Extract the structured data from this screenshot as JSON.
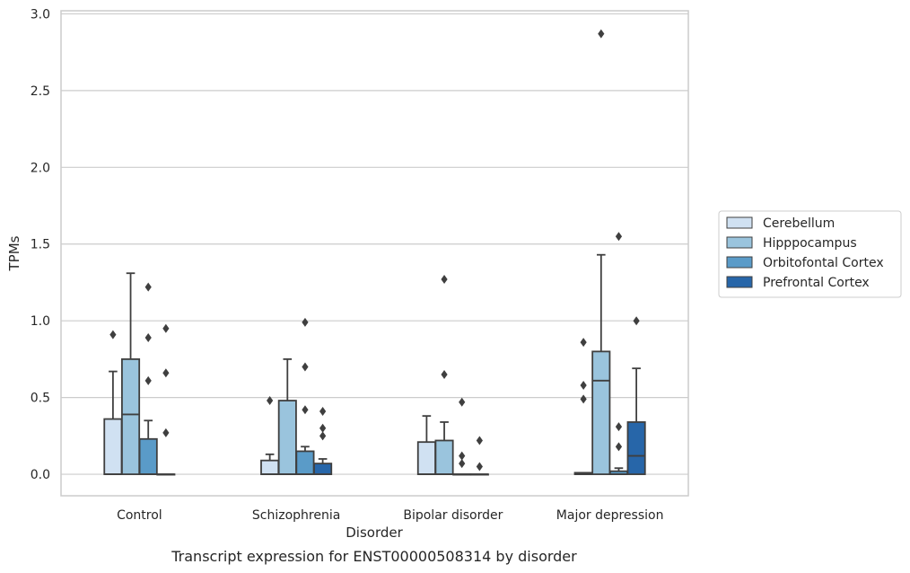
{
  "chart_data": {
    "type": "boxplot",
    "title": "",
    "caption": "Transcript expression for ENST00000508314 by disorder",
    "xlabel": "Disorder",
    "ylabel": "TPMs",
    "ylim": [
      -0.14,
      3.02
    ],
    "yticks": [
      0.0,
      0.5,
      1.0,
      1.5,
      2.0,
      2.5,
      3.0
    ],
    "ytick_labels": [
      "0.0",
      "0.5",
      "1.0",
      "1.5",
      "2.0",
      "2.5",
      "3.0"
    ],
    "grid": "horizontal",
    "legend_placement": "right",
    "categories": [
      "Control",
      "Schizophrenia",
      "Bipolar disorder",
      "Major depression"
    ],
    "series": [
      {
        "name": "Cerebellum",
        "color": "#d0e1f2",
        "boxes": [
          {
            "q1": 0.0,
            "median": 0.0,
            "q3": 0.36,
            "whislo": 0.0,
            "whishi": 0.67,
            "fliers": [
              0.91
            ]
          },
          {
            "q1": 0.0,
            "median": 0.0,
            "q3": 0.09,
            "whislo": 0.0,
            "whishi": 0.13,
            "fliers": [
              0.48
            ]
          },
          {
            "q1": 0.0,
            "median": 0.0,
            "q3": 0.21,
            "whislo": 0.0,
            "whishi": 0.38,
            "fliers": []
          },
          {
            "q1": 0.0,
            "median": 0.0,
            "q3": 0.01,
            "whislo": 0.0,
            "whishi": 0.01,
            "fliers": [
              0.49,
              0.58,
              0.86
            ]
          }
        ]
      },
      {
        "name": "Hipppocampus",
        "color": "#9ac4dd",
        "boxes": [
          {
            "q1": 0.0,
            "median": 0.39,
            "q3": 0.75,
            "whislo": 0.0,
            "whishi": 1.31,
            "fliers": []
          },
          {
            "q1": 0.0,
            "median": 0.0,
            "q3": 0.48,
            "whislo": 0.0,
            "whishi": 0.75,
            "fliers": []
          },
          {
            "q1": 0.0,
            "median": 0.0,
            "q3": 0.22,
            "whislo": 0.0,
            "whishi": 0.34,
            "fliers": [
              0.65,
              1.27
            ]
          },
          {
            "q1": 0.0,
            "median": 0.61,
            "q3": 0.8,
            "whislo": 0.0,
            "whishi": 1.43,
            "fliers": [
              2.87
            ]
          }
        ]
      },
      {
        "name": "Orbitofontal Cortex",
        "color": "#5a9bc8",
        "boxes": [
          {
            "q1": 0.0,
            "median": 0.0,
            "q3": 0.23,
            "whislo": 0.0,
            "whishi": 0.35,
            "fliers": [
              0.61,
              0.89,
              1.22
            ]
          },
          {
            "q1": 0.0,
            "median": 0.0,
            "q3": 0.15,
            "whislo": 0.0,
            "whishi": 0.18,
            "fliers": [
              0.42,
              0.7,
              0.99
            ]
          },
          {
            "q1": 0.0,
            "median": 0.0,
            "q3": 0.0,
            "whislo": 0.0,
            "whishi": 0.0,
            "fliers": [
              0.07,
              0.12,
              0.47
            ]
          },
          {
            "q1": 0.0,
            "median": 0.0,
            "q3": 0.02,
            "whislo": 0.0,
            "whishi": 0.04,
            "fliers": [
              0.18,
              0.31,
              1.55
            ]
          }
        ]
      },
      {
        "name": "Prefrontal Cortex",
        "color": "#2766a9",
        "boxes": [
          {
            "q1": 0.0,
            "median": 0.0,
            "q3": 0.0,
            "whislo": 0.0,
            "whishi": 0.0,
            "fliers": [
              0.27,
              0.66,
              0.95
            ]
          },
          {
            "q1": 0.0,
            "median": 0.0,
            "q3": 0.07,
            "whislo": 0.0,
            "whishi": 0.1,
            "fliers": [
              0.25,
              0.3,
              0.41
            ]
          },
          {
            "q1": 0.0,
            "median": 0.0,
            "q3": 0.0,
            "whislo": 0.0,
            "whishi": 0.0,
            "fliers": [
              0.05,
              0.22
            ]
          },
          {
            "q1": 0.0,
            "median": 0.12,
            "q3": 0.34,
            "whislo": 0.0,
            "whishi": 0.69,
            "fliers": [
              1.0
            ]
          }
        ]
      }
    ]
  }
}
